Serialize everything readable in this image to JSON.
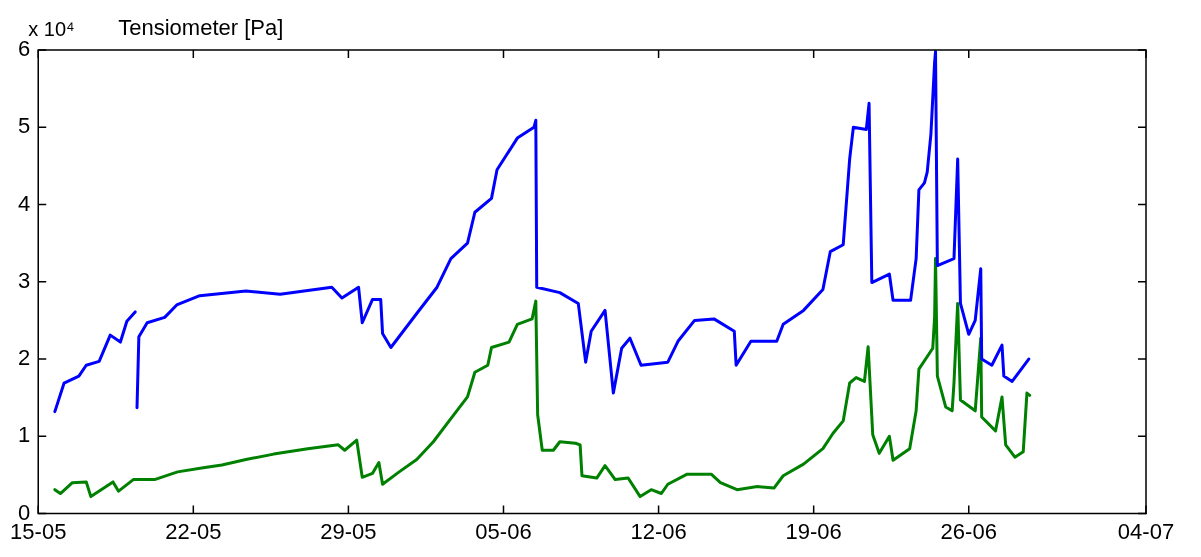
{
  "chart_data": {
    "type": "line",
    "title": "Tensiometer [Pa]",
    "annotations": [
      "x 10⁴"
    ],
    "xlim": [
      "--05-15",
      "--07-04"
    ],
    "xticks": [
      {
        "value": "--05-15",
        "label": "15-05"
      },
      {
        "value": "--05-22",
        "label": "22-05"
      },
      {
        "value": "--05-29",
        "label": "29-05"
      },
      {
        "value": "--06-05",
        "label": "05-06"
      },
      {
        "value": "--06-12",
        "label": "12-06"
      },
      {
        "value": "--06-19",
        "label": "19-06"
      },
      {
        "value": "--06-26",
        "label": "26-06"
      },
      {
        "value": "--07-04",
        "label": "04-07"
      }
    ],
    "ylim": [
      0,
      6
    ],
    "yticks": [
      0,
      1,
      2,
      3,
      4,
      5,
      6
    ],
    "grid": false,
    "legend": false,
    "marker": "none",
    "line_style": "solid",
    "series": [
      {
        "color": "#0000ff",
        "x": [
          "--05-15T18:00",
          "--05-16T04:00",
          "--05-16T20:00",
          "--05-17T04:00",
          "--05-17T18:00",
          "--05-18T06:00",
          "--05-18T17:00",
          "--05-19T00:00",
          "--05-19T09:00",
          "--05-19T10:00",
          "--05-19T11:00",
          "--05-19T13:00",
          "--05-19T22:00",
          "--05-20T17:00",
          "--05-21T06:00",
          "--05-22T07:00",
          "--05-24T09:00",
          "--05-25T22:00",
          "--05-28T06:00",
          "--05-28T17:00",
          "--05-29T11:00",
          "--05-29T15:00",
          "--05-30T02:00",
          "--05-30T11:00",
          "--05-30T13:00",
          "--05-30T22:00",
          "--06-01T02:00",
          "--06-02T00:00",
          "--06-02T15:00",
          "--06-03T09:00",
          "--06-03T17:00",
          "--06-04T11:00",
          "--06-04T17:00",
          "--06-05T15:00",
          "--06-06T09:00",
          "--06-06T11:00",
          "--06-06T12:00",
          "--06-07T13:00",
          "--06-08T09:00",
          "--06-08T17:00",
          "--06-08T23:00",
          "--06-09T14:00",
          "--06-09T23:00",
          "--06-10T08:00",
          "--06-10T17:00",
          "--06-11T05:00",
          "--06-12T10:00",
          "--06-12T21:00",
          "--06-13T15:00",
          "--06-14T12:00",
          "--06-15T10:00",
          "--06-15T12:00",
          "--06-16T04:00",
          "--06-17T08:00",
          "--06-17T15:00",
          "--06-18T13:00",
          "--06-19T10:00",
          "--06-19T18:00",
          "--06-20T08:00",
          "--06-20T15:00",
          "--06-20T19:00",
          "--06-21T09:00",
          "--06-21T12:00",
          "--06-21T14:00",
          "--06-21T15:00",
          "--06-22T10:00",
          "--06-22T14:00",
          "--06-23T09:00",
          "--06-23T15:00",
          "--06-23T18:00",
          "--06-24T00:00",
          "--06-24T03:00",
          "--06-24T07:00",
          "--06-24T11:00",
          "--06-24T12:00",
          "--06-24T14:00",
          "--06-25T08:00",
          "--06-25T12:00",
          "--06-25T15:00",
          "--06-26T00:00",
          "--06-26T07:00",
          "--06-26T13:00",
          "--06-26T14:00",
          "--06-27T01:00",
          "--06-27T12:00",
          "--06-27T14:00",
          "--06-27T23:00",
          "--06-28T17:00"
        ],
        "values": [
          1.32,
          1.69,
          1.78,
          1.92,
          1.97,
          2.31,
          2.22,
          2.49,
          2.61,
          null,
          1.37,
          2.29,
          2.47,
          2.54,
          2.7,
          2.82,
          2.88,
          2.84,
          2.93,
          2.79,
          2.93,
          2.47,
          2.77,
          2.77,
          2.33,
          2.15,
          2.59,
          2.93,
          3.3,
          3.5,
          3.9,
          4.08,
          4.45,
          4.86,
          5.0,
          5.09,
          2.93,
          2.86,
          2.72,
          1.96,
          2.36,
          2.63,
          1.56,
          2.14,
          2.27,
          1.92,
          1.96,
          2.23,
          2.5,
          2.52,
          2.36,
          1.92,
          2.23,
          2.23,
          2.45,
          2.63,
          2.9,
          3.39,
          3.48,
          4.59,
          5.0,
          4.97,
          5.31,
          3.75,
          2.99,
          3.1,
          2.76,
          2.76,
          3.3,
          4.19,
          4.28,
          4.42,
          4.91,
          5.84,
          5.98,
          3.21,
          3.3,
          4.59,
          2.72,
          2.32,
          2.5,
          3.17,
          2.0,
          1.92,
          2.18,
          1.78,
          1.71,
          2.0
        ]
      },
      {
        "color": "#008000",
        "x": [
          "--05-15T18:00",
          "--05-16T00:00",
          "--05-16T13:00",
          "--05-17T04:00",
          "--05-17T09:00",
          "--05-18T09:00",
          "--05-18T15:00",
          "--05-19T07:00",
          "--05-20T06:00",
          "--05-21T07:00",
          "--05-22T09:00",
          "--05-23T07:00",
          "--05-24T09:00",
          "--05-25T15:00",
          "--05-27T04:00",
          "--05-28T13:00",
          "--05-28T20:00",
          "--05-29T09:00",
          "--05-29T15:00",
          "--05-30T02:00",
          "--05-30T09:00",
          "--05-30T13:00",
          "--05-31T07:00",
          "--06-01T02:00",
          "--06-01T20:00",
          "--06-02T15:00",
          "--06-03T09:00",
          "--06-03T17:00",
          "--06-04T07:00",
          "--06-04T11:00",
          "--06-05T06:00",
          "--06-05T15:00",
          "--06-06T07:00",
          "--06-06T11:00",
          "--06-06T13:00",
          "--06-06T18:00",
          "--06-07T06:00",
          "--06-07T13:00",
          "--06-08T06:00",
          "--06-08T11:00",
          "--06-08T13:00",
          "--06-09T05:00",
          "--06-09T14:00",
          "--06-10T01:00",
          "--06-10T15:00",
          "--06-11T04:00",
          "--06-11T16:00",
          "--06-12T03:00",
          "--06-12T10:00",
          "--06-13T07:00",
          "--06-14T09:00",
          "--06-14T19:00",
          "--06-15T13:00",
          "--06-16T11:00",
          "--06-17T05:00",
          "--06-17T15:00",
          "--06-18T13:00",
          "--06-19T10:00",
          "--06-19T21:00",
          "--06-20T08:00",
          "--06-20T15:00",
          "--06-20T22:00",
          "--06-21T07:00",
          "--06-21T11:00",
          "--06-21T16:00",
          "--06-21T23:00",
          "--06-22T10:00",
          "--06-22T14:00",
          "--06-23T08:00",
          "--06-23T15:00",
          "--06-23T18:00",
          "--06-24T09:00",
          "--06-24T11:00",
          "--06-24T12:00",
          "--06-24T14:00",
          "--06-24T23:00",
          "--06-25T06:00",
          "--06-25T08:00",
          "--06-25T12:00",
          "--06-25T15:00",
          "--06-26T07:00",
          "--06-26T13:00",
          "--06-26T14:00",
          "--06-27T05:00",
          "--06-27T12:00",
          "--06-27T16:00",
          "--06-28T02:00",
          "--06-28T11:00",
          "--06-28T15:00",
          "--06-28T18:00"
        ],
        "values": [
          0.31,
          0.26,
          0.4,
          0.41,
          0.22,
          0.41,
          0.29,
          0.44,
          0.44,
          0.54,
          0.59,
          0.63,
          0.7,
          0.77,
          0.84,
          0.89,
          0.82,
          0.95,
          0.47,
          0.52,
          0.66,
          0.38,
          0.54,
          0.7,
          0.93,
          1.23,
          1.51,
          1.83,
          1.92,
          2.15,
          2.22,
          2.45,
          2.52,
          2.75,
          1.28,
          0.82,
          0.82,
          0.93,
          0.91,
          0.89,
          0.49,
          0.46,
          0.62,
          0.44,
          0.46,
          0.22,
          0.31,
          0.26,
          0.38,
          0.51,
          0.51,
          0.4,
          0.31,
          0.35,
          0.33,
          0.49,
          0.64,
          0.84,
          1.04,
          1.2,
          1.69,
          1.76,
          1.71,
          2.16,
          1.02,
          0.78,
          1.0,
          0.69,
          0.84,
          1.33,
          1.87,
          2.14,
          2.54,
          3.3,
          1.78,
          1.38,
          1.33,
          1.69,
          2.72,
          1.47,
          1.33,
          2.27,
          1.25,
          1.07,
          1.51,
          0.89,
          0.73,
          0.8,
          1.56,
          1.53
        ]
      }
    ]
  }
}
